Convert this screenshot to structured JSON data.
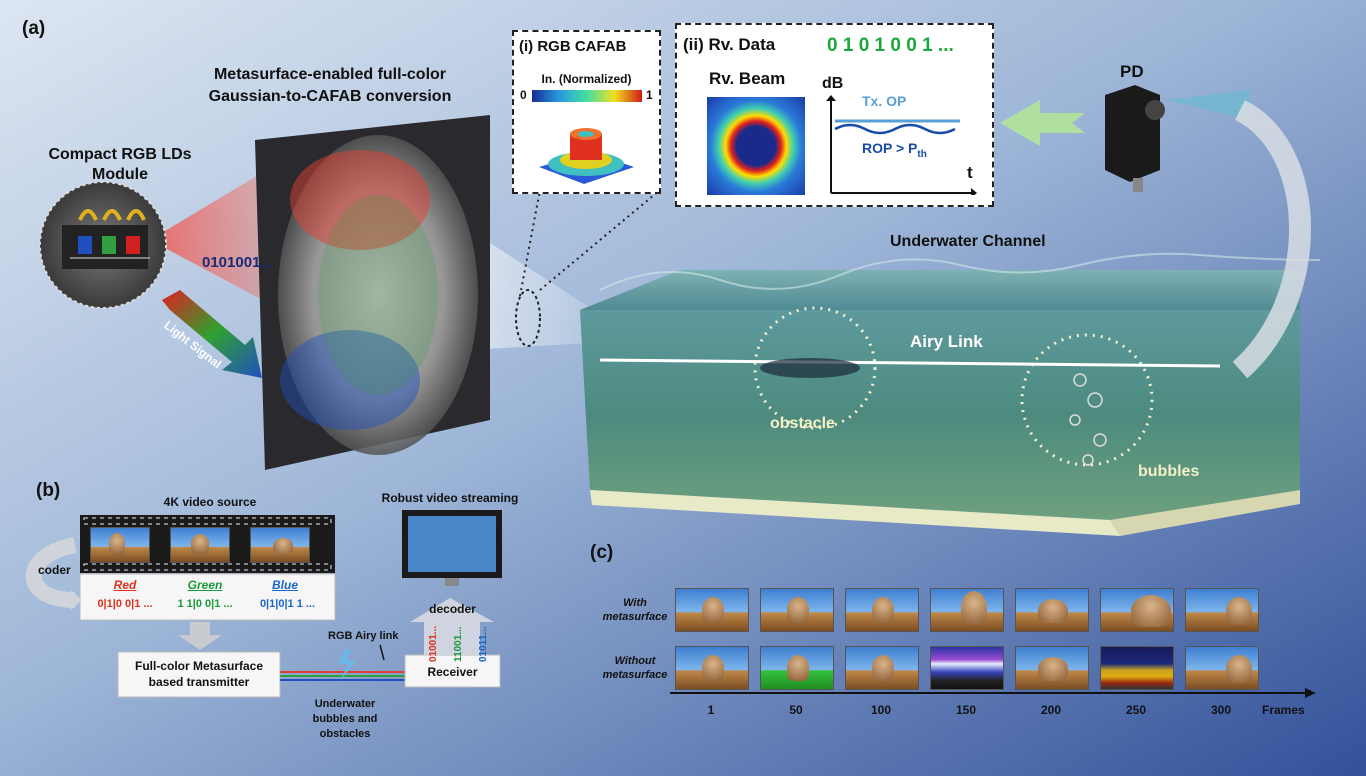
{
  "labels": {
    "panel_a": "(a)",
    "panel_b": "(b)",
    "panel_c": "(c)",
    "metasurface_title_1": "Metasurface-enabled full-color",
    "metasurface_title_2": "Gaussian-to-CAFAB conversion",
    "rgb_module_1": "Compact RGB LDs",
    "rgb_module_2": "Module",
    "binary_stream": "0101001...",
    "light_signal": "Light Signal",
    "inset_i_title": "(i)  RGB CAFAB",
    "inset_i_scale": "In. (Normalized)",
    "inset_i_min": "0",
    "inset_i_max": "1",
    "inset_ii_title": "(ii)  Rv. Data",
    "inset_ii_bits": "0 1 0 1 0 0 1 ...",
    "rv_beam": "Rv. Beam",
    "db_axis": "dB",
    "t_axis": "t",
    "tx_op": "Tx. OP",
    "rop": "ROP > P",
    "rop_sub": "th",
    "pd": "PD",
    "underwater_channel": "Underwater Channel",
    "airy_link": "Airy Link",
    "obstacle": "obstacle",
    "bubbles": "bubbles"
  },
  "panel_b": {
    "video_source": "4K video source",
    "coder": "coder",
    "red": "Red",
    "green": "Green",
    "blue": "Blue",
    "red_bits": "0|1|0 0|1 ...",
    "green_bits": "1 1|0 0|1 ...",
    "blue_bits": "0|1|0|1 1 ...",
    "transmitter_1": "Full-color Metasurface",
    "transmitter_2": "based transmitter",
    "airy_link": "RGB Airy link",
    "underwater_1": "Underwater",
    "underwater_2": "bubbles and",
    "underwater_3": "obstacles",
    "streaming": "Robust video streaming",
    "decoder": "decoder",
    "receiver": "Receiver",
    "rx_red": "01001...",
    "rx_green": "11001...",
    "rx_blue": "01011..."
  },
  "panel_c": {
    "row1_1": "With",
    "row1_2": "metasurface",
    "row2_1": "Without",
    "row2_2": "metasurface",
    "frames": [
      "1",
      "50",
      "100",
      "150",
      "200",
      "250",
      "300"
    ],
    "axis_label": "Frames"
  },
  "colors": {
    "green_bits": "#1aa83a",
    "red": "#e0301e",
    "green": "#1a9a3a",
    "blue": "#1a66c8",
    "tx_op": "#5aa0d8",
    "rop": "#1a4aa8"
  }
}
